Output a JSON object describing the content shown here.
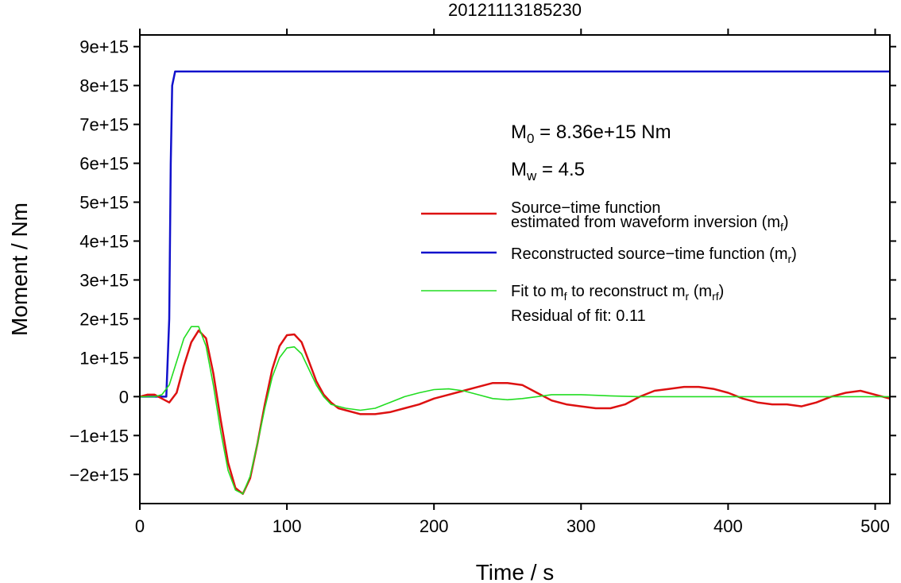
{
  "chart_data": {
    "type": "line",
    "title": "20121113185230",
    "xlabel": "Time / s",
    "ylabel": "Moment / Nm",
    "xlim": [
      0,
      510
    ],
    "ylim": [
      -2750000000000000.0,
      9300000000000000.0
    ],
    "x_ticks": [
      0,
      100,
      200,
      300,
      400,
      500
    ],
    "x_tick_labels": [
      "0",
      "100",
      "200",
      "300",
      "400",
      "500"
    ],
    "y_ticks": [
      -2000000000000000.0,
      -1000000000000000.0,
      0,
      1000000000000000.0,
      2000000000000000.0,
      3000000000000000.0,
      4000000000000000.0,
      5000000000000000.0,
      6000000000000000.0,
      7000000000000000.0,
      8000000000000000.0,
      9000000000000000.0
    ],
    "y_tick_labels": [
      "−2e+15",
      "−1e+15",
      "0",
      "1e+15",
      "2e+15",
      "3e+15",
      "4e+15",
      "5e+15",
      "6e+15",
      "7e+15",
      "8e+15",
      "9e+15"
    ],
    "grid": false,
    "legend_position": "right",
    "annotations": {
      "m0": {
        "main": "M",
        "sub": "0",
        "rest": " = 8.36e+15 Nm"
      },
      "mw": {
        "main": "M",
        "sub": "w",
        "rest": " = 4.5"
      },
      "residual": "Residual of fit: 0.11"
    },
    "series": [
      {
        "name": "Source−time function estimated from waveform inversion (mf)",
        "legend_line1": "Source−time function",
        "legend_line2": "estimated from waveform inversion (m",
        "legend_sub": "f",
        "legend_end": ")",
        "color": "#dd1111",
        "x": [
          0,
          5,
          10,
          15,
          20,
          25,
          30,
          35,
          40,
          45,
          50,
          55,
          60,
          65,
          70,
          75,
          80,
          85,
          90,
          95,
          100,
          105,
          110,
          115,
          120,
          125,
          130,
          135,
          140,
          150,
          160,
          170,
          180,
          190,
          200,
          210,
          220,
          230,
          240,
          250,
          260,
          270,
          280,
          290,
          300,
          310,
          320,
          330,
          340,
          350,
          360,
          370,
          380,
          390,
          400,
          410,
          420,
          430,
          440,
          450,
          460,
          470,
          480,
          490,
          500,
          510
        ],
        "y": [
          0,
          50000000000000.0,
          50000000000000.0,
          -50000000000000.0,
          -150000000000000.0,
          100000000000000.0,
          800000000000000.0,
          1400000000000000.0,
          1700000000000000.0,
          1500000000000000.0,
          600000000000000.0,
          -600000000000000.0,
          -1700000000000000.0,
          -2350000000000000.0,
          -2500000000000000.0,
          -2100000000000000.0,
          -1200000000000000.0,
          -200000000000000.0,
          700000000000000.0,
          1300000000000000.0,
          1580000000000000.0,
          1600000000000000.0,
          1400000000000000.0,
          900000000000000.0,
          400000000000000.0,
          50000000000000.0,
          -150000000000000.0,
          -300000000000000.0,
          -350000000000000.0,
          -450000000000000.0,
          -450000000000000.0,
          -400000000000000.0,
          -300000000000000.0,
          -200000000000000.0,
          -50000000000000.0,
          50000000000000.0,
          150000000000000.0,
          250000000000000.0,
          350000000000000.0,
          350000000000000.0,
          300000000000000.0,
          100000000000000.0,
          -100000000000000.0,
          -200000000000000.0,
          -250000000000000.0,
          -300000000000000.0,
          -300000000000000.0,
          -200000000000000.0,
          0,
          150000000000000.0,
          200000000000000.0,
          250000000000000.0,
          250000000000000.0,
          200000000000000.0,
          100000000000000.0,
          -50000000000000.0,
          -150000000000000.0,
          -200000000000000.0,
          -200000000000000.0,
          -250000000000000.0,
          -150000000000000.0,
          0,
          100000000000000.0,
          150000000000000.0,
          50000000000000.0,
          -50000000000000.0
        ]
      },
      {
        "name": "Reconstructed source−time function (mr)",
        "legend_line1": "Reconstructed source−time function (m",
        "legend_sub": "r",
        "legend_end": ")",
        "color": "#1111cc",
        "x": [
          0,
          18,
          20,
          21,
          22,
          24,
          510
        ],
        "y": [
          0,
          0,
          2000000000000000.0,
          6000000000000000.0,
          8000000000000000.0,
          8360000000000000.0,
          8360000000000000.0
        ]
      },
      {
        "name": "Fit to mf to reconstruct mr (mrf)",
        "legend_line1": "Fit to m",
        "legend_sub1": "f",
        "legend_mid": " to reconstruct m",
        "legend_sub2": "r",
        "legend_mid2": " (m",
        "legend_sub3": "rf",
        "legend_end": ")",
        "color": "#22dd22",
        "x": [
          0,
          10,
          15,
          20,
          25,
          30,
          35,
          40,
          45,
          50,
          55,
          60,
          65,
          70,
          75,
          80,
          85,
          90,
          95,
          100,
          105,
          110,
          115,
          120,
          125,
          130,
          140,
          150,
          160,
          170,
          180,
          190,
          200,
          210,
          220,
          230,
          240,
          250,
          260,
          270,
          280,
          290,
          300,
          320,
          340,
          360,
          400,
          450,
          510
        ],
        "y": [
          0,
          0,
          50000000000000.0,
          300000000000000.0,
          900000000000000.0,
          1500000000000000.0,
          1800000000000000.0,
          1800000000000000.0,
          1300000000000000.0,
          300000000000000.0,
          -900000000000000.0,
          -1900000000000000.0,
          -2400000000000000.0,
          -2500000000000000.0,
          -2050000000000000.0,
          -1200000000000000.0,
          -300000000000000.0,
          500000000000000.0,
          1000000000000000.0,
          1250000000000000.0,
          1280000000000000.0,
          1100000000000000.0,
          700000000000000.0,
          300000000000000.0,
          0,
          -200000000000000.0,
          -300000000000000.0,
          -350000000000000.0,
          -300000000000000.0,
          -150000000000000.0,
          0,
          100000000000000.0,
          180000000000000.0,
          200000000000000.0,
          150000000000000.0,
          50000000000000.0,
          -50000000000000.0,
          -80000000000000.0,
          -50000000000000.0,
          0,
          50000000000000.0,
          50000000000000.0,
          50000000000000.0,
          20000000000000.0,
          0,
          0,
          0,
          0,
          0
        ]
      }
    ]
  }
}
